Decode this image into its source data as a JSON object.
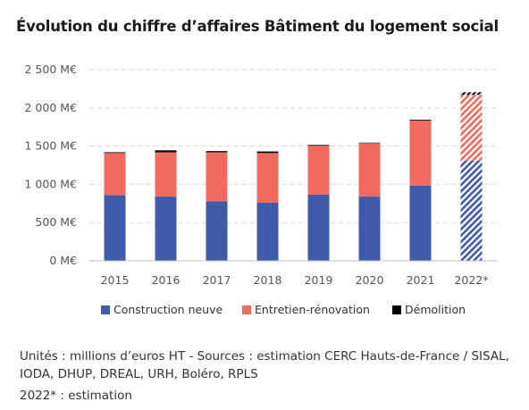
{
  "chart_data": {
    "type": "bar",
    "stacked": true,
    "title": "Évolution du chiffre d’affaires Bâtiment du logement social",
    "categories": [
      "2015",
      "2016",
      "2017",
      "2018",
      "2019",
      "2020",
      "2021",
      "2022*"
    ],
    "series": [
      {
        "name": "Construction neuve",
        "color": "#3f5ba9",
        "values": [
          860,
          840,
          780,
          760,
          865,
          840,
          985,
          1310
        ]
      },
      {
        "name": "Entretien-rénovation",
        "color": "#f06b5e",
        "values": [
          550,
          580,
          640,
          650,
          640,
          700,
          850,
          860
        ]
      },
      {
        "name": "Démolition",
        "color": "#000000",
        "values": [
          10,
          25,
          15,
          20,
          10,
          5,
          10,
          35
        ]
      }
    ],
    "estimated_categories": [
      "2022*"
    ],
    "yticks": [
      "0 M€",
      "500 M€",
      "1 000 M€",
      "1 500 M€",
      "2 000 M€",
      "2 500 M€"
    ],
    "ylim": [
      0,
      2500
    ],
    "grid": true,
    "legend_position": "bottom"
  },
  "footnotes": {
    "source": "Unités : millions d’euros HT - Sources : estimation CERC Hauts-de-France / SISAL, IODA, DHUP, DREAL, URH, Boléro, RPLS",
    "estimate": "2022* : estimation"
  }
}
